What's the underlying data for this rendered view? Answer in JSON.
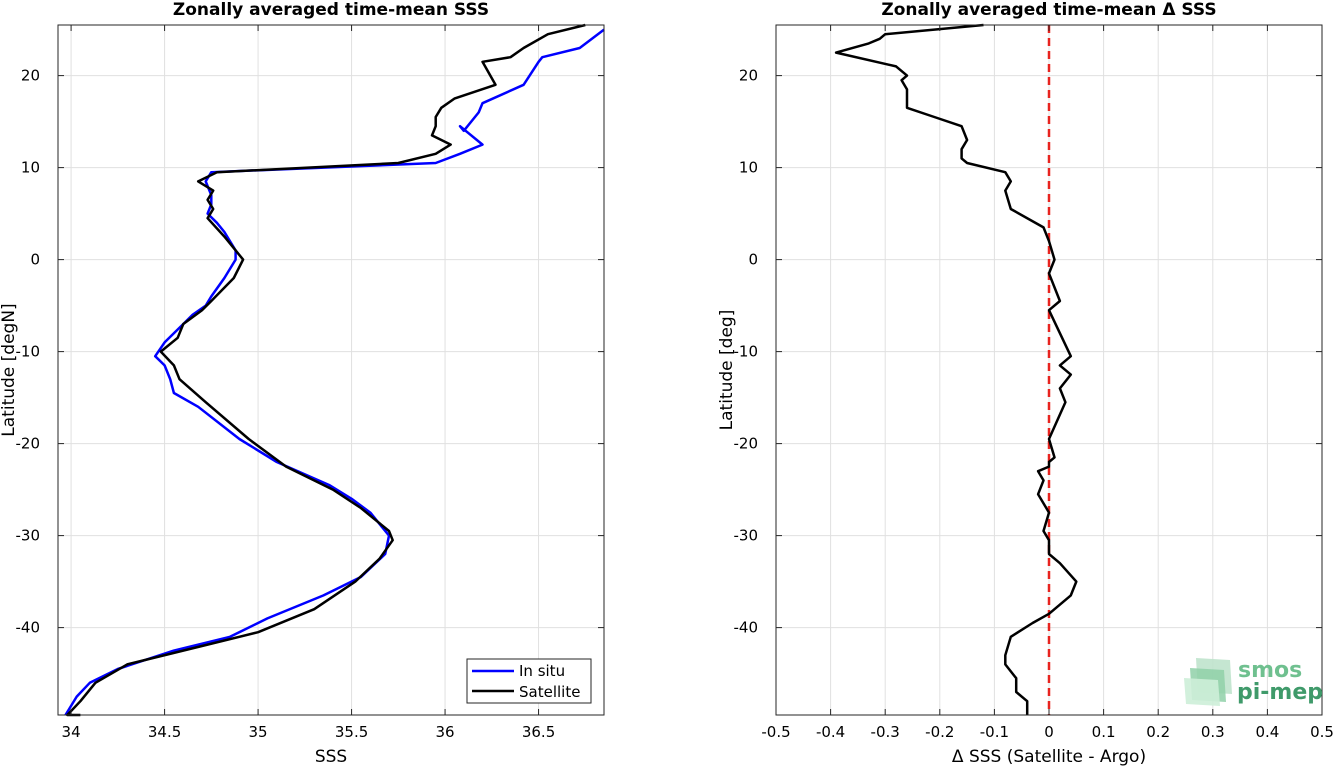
{
  "chart_data": [
    {
      "type": "line",
      "title": "Zonally averaged time-mean SSS",
      "xlabel": "SSS",
      "ylabel": "Latitude [degN]",
      "xlim": [
        33.93,
        36.85
      ],
      "ylim": [
        -49.5,
        25.5
      ],
      "xticks": [
        "34",
        "34.5",
        "35",
        "35.5",
        "36",
        "36.5"
      ],
      "xtick_values": [
        34,
        34.5,
        35,
        35.5,
        36,
        36.5
      ],
      "yticks": [
        "-40",
        "-30",
        "-20",
        "-10",
        "0",
        "10",
        "20"
      ],
      "ytick_values": [
        -40,
        -30,
        -20,
        -10,
        0,
        10,
        20
      ],
      "grid": true,
      "legend": "bottom-right",
      "series": [
        {
          "name": "In situ",
          "color": "#0000ff",
          "x": [
            36.85,
            36.72,
            36.52,
            36.5,
            36.42,
            36.2,
            36.18,
            36.1,
            36.08,
            36.2,
            36.08,
            35.95,
            34.75,
            34.72,
            34.75,
            34.75,
            34.73,
            34.78,
            34.82,
            34.88,
            34.88,
            34.82,
            34.75,
            34.72,
            34.65,
            34.6,
            34.5,
            34.45,
            34.5,
            34.53,
            34.55,
            34.68,
            34.9,
            35.1,
            35.38,
            35.5,
            35.6,
            35.7,
            35.68,
            35.55,
            35.35,
            35.05,
            34.85,
            34.55,
            34.25,
            34.1,
            34.03,
            33.97
          ],
          "y": [
            25.0,
            23.0,
            22.0,
            21.5,
            19.0,
            17.0,
            16.0,
            14.0,
            14.5,
            12.5,
            11.5,
            10.5,
            9.5,
            8.5,
            7.0,
            6.0,
            5.0,
            4.0,
            3.0,
            1.0,
            0.0,
            -2.0,
            -4.0,
            -5.0,
            -6.0,
            -7.0,
            -9.0,
            -10.5,
            -11.5,
            -13.0,
            -14.5,
            -16.0,
            -19.5,
            -22.0,
            -24.5,
            -26.0,
            -27.5,
            -30.0,
            -32.0,
            -34.5,
            -36.5,
            -39.0,
            -41.0,
            -42.5,
            -44.5,
            -46.0,
            -47.5,
            -49.5
          ]
        },
        {
          "name": "Satellite",
          "color": "#000000",
          "x": [
            36.75,
            36.55,
            36.42,
            36.35,
            36.2,
            36.27,
            36.05,
            35.98,
            35.95,
            35.95,
            35.93,
            36.03,
            35.95,
            35.75,
            34.78,
            34.68,
            34.76,
            34.73,
            34.76,
            34.73,
            34.82,
            34.92,
            34.87,
            34.75,
            34.7,
            34.6,
            34.57,
            34.48,
            34.55,
            34.58,
            34.72,
            34.95,
            35.15,
            35.4,
            35.55,
            35.7,
            35.72,
            35.65,
            35.52,
            35.3,
            35.0,
            34.7,
            34.3,
            34.13,
            34.05,
            33.98,
            34.05
          ],
          "y": [
            25.5,
            24.5,
            23.0,
            22.0,
            21.5,
            19.0,
            17.5,
            16.5,
            15.5,
            14.5,
            13.5,
            12.5,
            11.5,
            10.5,
            9.5,
            8.5,
            7.5,
            6.5,
            5.5,
            4.5,
            2.5,
            0.0,
            -2.0,
            -4.5,
            -5.5,
            -7.0,
            -8.5,
            -10.0,
            -11.5,
            -13.0,
            -15.5,
            -19.5,
            -22.5,
            -25.0,
            -27.0,
            -29.5,
            -30.5,
            -32.5,
            -35.0,
            -38.0,
            -40.5,
            -42.0,
            -44.0,
            -46.0,
            -48.0,
            -49.5,
            -49.5
          ]
        }
      ]
    },
    {
      "type": "line",
      "title": "Zonally averaged time-mean Δ SSS",
      "xlabel": "Δ SSS (Satellite - Argo)",
      "ylabel": "Latitude [deg]",
      "xlim": [
        -0.5,
        0.5
      ],
      "ylim": [
        -49.5,
        25.5
      ],
      "xticks": [
        "-0.5",
        "-0.4",
        "-0.3",
        "-0.2",
        "-0.1",
        "0",
        "0.1",
        "0.2",
        "0.3",
        "0.4",
        "0.5"
      ],
      "xtick_values": [
        -0.5,
        -0.4,
        -0.3,
        -0.2,
        -0.1,
        0,
        0.1,
        0.2,
        0.3,
        0.4,
        0.5
      ],
      "yticks": [
        "-40",
        "-30",
        "-20",
        "-10",
        "0",
        "10",
        "20"
      ],
      "ytick_values": [
        -40,
        -30,
        -20,
        -10,
        0,
        10,
        20
      ],
      "grid": true,
      "reference_line": {
        "x": 0,
        "color": "#e8231f",
        "style": "dashed"
      },
      "series": [
        {
          "color": "#000000",
          "x": [
            -0.12,
            -0.3,
            -0.31,
            -0.33,
            -0.39,
            -0.28,
            -0.26,
            -0.27,
            -0.26,
            -0.26,
            -0.21,
            -0.16,
            -0.15,
            -0.16,
            -0.16,
            -0.15,
            -0.08,
            -0.07,
            -0.08,
            -0.07,
            -0.01,
            0.0,
            0.01,
            0.0,
            0.02,
            0.0,
            0.02,
            0.04,
            0.02,
            0.04,
            0.02,
            0.03,
            0.0,
            0.01,
            0.0,
            0.0,
            -0.02,
            -0.01,
            -0.02,
            0.0,
            -0.01,
            0.0,
            0.0,
            0.02,
            0.05,
            0.04,
            0.0,
            -0.03,
            -0.07,
            -0.08,
            -0.08,
            -0.06,
            -0.06,
            -0.04,
            -0.04
          ],
          "y": [
            25.5,
            24.5,
            24.0,
            23.5,
            22.5,
            21.0,
            20.0,
            19.5,
            18.5,
            16.5,
            15.5,
            14.5,
            13.0,
            12.0,
            11.0,
            10.5,
            9.5,
            8.5,
            7.5,
            5.5,
            3.5,
            2.0,
            0.0,
            -1.5,
            -4.5,
            -5.5,
            -8.0,
            -10.5,
            -11.5,
            -12.5,
            -14.0,
            -15.5,
            -19.5,
            -21.5,
            -22.0,
            -22.5,
            -23.0,
            -24.0,
            -25.5,
            -27.5,
            -29.5,
            -30.5,
            -32.0,
            -33.0,
            -35.0,
            -36.5,
            -38.5,
            -39.5,
            -41.0,
            -43.0,
            -44.0,
            -45.5,
            -47.0,
            -48.0,
            -49.5
          ]
        }
      ]
    }
  ],
  "legend": {
    "entries": [
      "In situ",
      "Satellite"
    ]
  },
  "logo": {
    "line1": "smos",
    "line2": "pi-mep",
    "color1": "#6fc08f",
    "color2": "#3f9a6a"
  }
}
